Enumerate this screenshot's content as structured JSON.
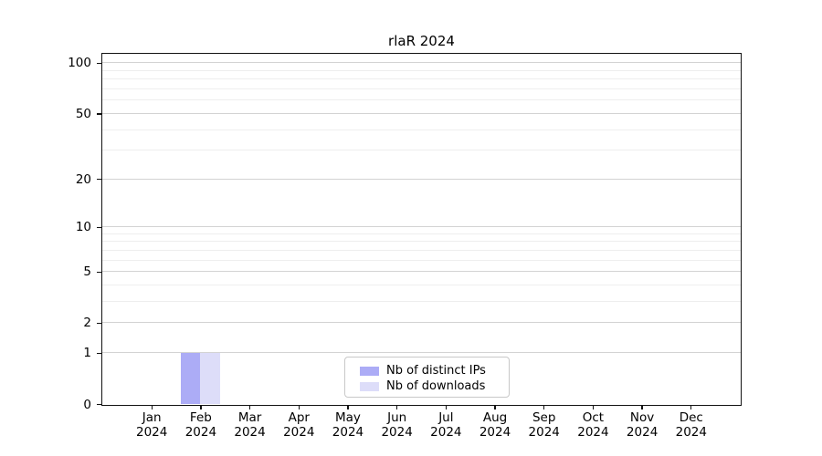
{
  "chart_data": {
    "type": "bar",
    "title": "rlaR 2024",
    "x_tick_months": [
      "Jan",
      "Feb",
      "Mar",
      "Apr",
      "May",
      "Jun",
      "Jul",
      "Aug",
      "Sep",
      "Oct",
      "Nov",
      "Dec"
    ],
    "x_tick_year": "2024",
    "categories": [
      "Jan 2024",
      "Feb 2024",
      "Mar 2024",
      "Apr 2024",
      "May 2024",
      "Jun 2024",
      "Jul 2024",
      "Aug 2024",
      "Sep 2024",
      "Oct 2024",
      "Nov 2024",
      "Dec 2024"
    ],
    "series": [
      {
        "name": "Nb of distinct IPs",
        "color": "#acacf6",
        "values": [
          0,
          1,
          0,
          0,
          0,
          0,
          0,
          0,
          0,
          0,
          0,
          0
        ]
      },
      {
        "name": "Nb of downloads",
        "color": "#ddddf9",
        "values": [
          0,
          1,
          0,
          0,
          0,
          0,
          0,
          0,
          0,
          0,
          0,
          0
        ]
      }
    ],
    "y_axis": {
      "scale": "log1p",
      "ticks": [
        0,
        1,
        2,
        5,
        10,
        20,
        50,
        100
      ],
      "minor_gridlines": [
        3,
        4,
        6,
        7,
        8,
        9,
        30,
        40,
        60,
        70,
        80,
        90
      ],
      "max": 113.2,
      "ylim": [
        0,
        113.2
      ]
    },
    "grid": true,
    "legend": {
      "position": "lower center",
      "entries": [
        "Nb of distinct IPs",
        "Nb of downloads"
      ]
    }
  },
  "colors": {
    "axis": "#121212",
    "major_grid": "#d3d3d3",
    "minor_grid": "#eeeeee",
    "legend_border": "#c8c8c8",
    "background": "#ffffff"
  }
}
